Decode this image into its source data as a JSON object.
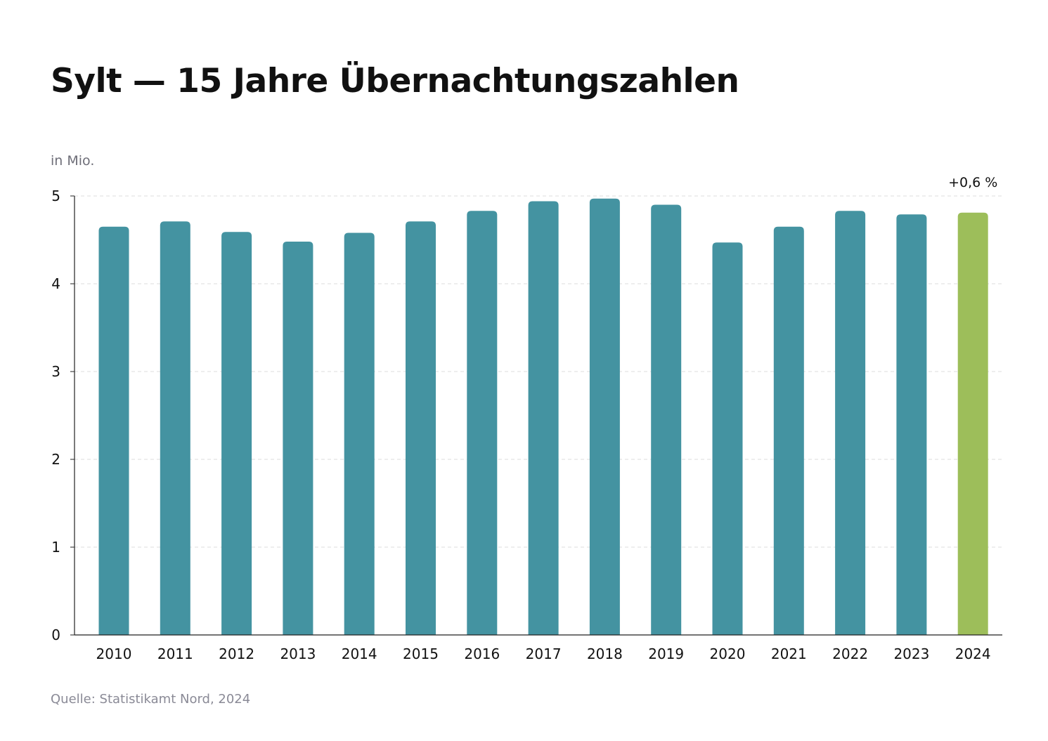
{
  "title": "Sylt — 15 Jahre Übernachtungszahlen",
  "unit_label": "in Mio.",
  "source": "Quelle: Statistikamt Nord, 2024",
  "colors": {
    "bar": "#4493a1",
    "highlight": "#9dbe5a",
    "grid": "#dddddd",
    "axis": "#222222"
  },
  "chart_data": {
    "type": "bar",
    "categories": [
      "2010",
      "2011",
      "2012",
      "2013",
      "2014",
      "2015",
      "2016",
      "2017",
      "2018",
      "2019",
      "2020",
      "2021",
      "2022",
      "2023",
      "2024"
    ],
    "values": [
      4.65,
      4.71,
      4.59,
      4.48,
      4.58,
      4.71,
      4.83,
      4.94,
      4.97,
      4.9,
      4.47,
      4.65,
      4.83,
      4.79,
      4.81
    ],
    "highlight_index": 14,
    "annotation": {
      "text": "+0,6 %",
      "category": "2024"
    },
    "ylim": [
      0,
      5
    ],
    "yticks": [
      0,
      1,
      2,
      3,
      4,
      5
    ],
    "grid": true,
    "grid_style": "dashed horizontal",
    "ylabel": "in Mio.",
    "xlabel": ""
  }
}
